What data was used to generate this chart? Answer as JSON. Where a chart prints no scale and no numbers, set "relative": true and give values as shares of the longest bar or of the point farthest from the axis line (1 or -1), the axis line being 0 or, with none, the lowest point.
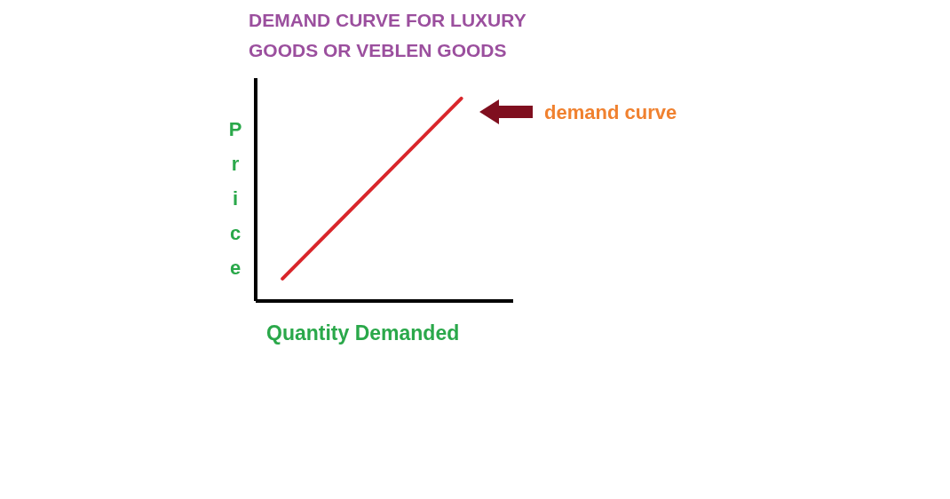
{
  "chart_data": {
    "type": "line",
    "title": "DEMAND CURVE FOR LUXURY GOODS OR VEBLEN GOODS",
    "xlabel": "Quantity Demanded",
    "ylabel": "Price",
    "annotations": [
      "demand curve"
    ],
    "categories": [
      null,
      null
    ],
    "relative": true,
    "series": [
      {
        "color": "#d9262b",
        "values": [
          0.11,
          1
        ]
      }
    ]
  }
}
